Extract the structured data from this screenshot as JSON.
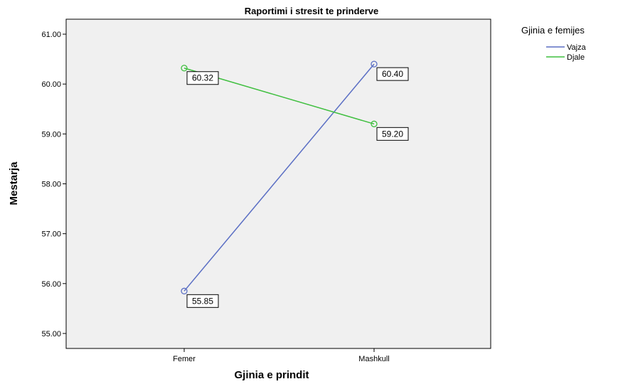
{
  "chart_data": {
    "type": "line",
    "title": "Raportimi i stresit te prinderve",
    "xlabel": "Gjinia e prindit",
    "ylabel": "Mestarja",
    "categories": [
      "Femer",
      "Mashkull"
    ],
    "ylim": [
      54.7,
      61.3
    ],
    "yticks": [
      55,
      56,
      57,
      58,
      59,
      60,
      61
    ],
    "yticks_labels": [
      "55.00",
      "56.00",
      "57.00",
      "58.00",
      "59.00",
      "60.00",
      "61.00"
    ],
    "legend_title": "Gjinia e femijes",
    "legend_position": "right",
    "grid": false,
    "series": [
      {
        "name": "Vajza",
        "values": [
          55.85,
          60.4
        ],
        "labels": [
          "55.85",
          "60.40"
        ],
        "color": "#5b6fc4"
      },
      {
        "name": "Djale",
        "values": [
          60.32,
          59.2
        ],
        "labels": [
          "60.32",
          "59.20"
        ],
        "color": "#3fbf3f"
      }
    ]
  }
}
